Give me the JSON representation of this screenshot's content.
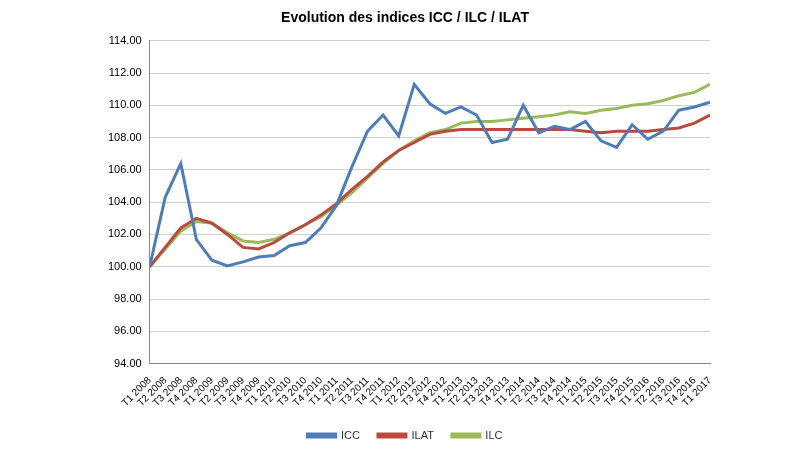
{
  "chart_data": {
    "type": "line",
    "title": "Evolution des indices ICC / ILC / ILAT",
    "categories": [
      "T1 2008",
      "T2 2008",
      "T3 2008",
      "T4 2008",
      "T1 2009",
      "T2 2009",
      "T3 2009",
      "T4 2009",
      "T1 2010",
      "T2 2010",
      "T3 2010",
      "T4 2010",
      "T1 2011",
      "T2 2011",
      "T3 2011",
      "T4 2011",
      "T1 2012",
      "T2 2012",
      "T3 2012",
      "T4 2012",
      "T1 2013",
      "T2 2013",
      "T3 2013",
      "T4 2013",
      "T1 2014",
      "T2 2014",
      "T3 2014",
      "T4 2014",
      "T1 2015",
      "T2 2015",
      "T3 2015",
      "T4 2015",
      "T1 2016",
      "T2 2016",
      "T3 2016",
      "T4 2016",
      "T1 2017"
    ],
    "series": [
      {
        "name": "ICC",
        "color": "#4f7db8",
        "values": [
          100.0,
          104.3,
          106.4,
          101.7,
          100.4,
          100.05,
          100.3,
          100.6,
          100.7,
          101.3,
          101.5,
          102.4,
          103.8,
          106.2,
          108.4,
          109.4,
          108.1,
          111.3,
          110.1,
          109.5,
          109.9,
          109.4,
          107.7,
          107.9,
          110.0,
          108.3,
          108.7,
          108.5,
          109.0,
          107.8,
          107.4,
          108.8,
          107.9,
          108.4,
          109.7,
          109.9,
          110.2
        ]
      },
      {
        "name": "ILAT",
        "color": "#b84a3e",
        "values": [
          100.0,
          101.2,
          102.4,
          103.0,
          102.7,
          102.0,
          101.2,
          101.1,
          101.5,
          102.1,
          102.6,
          103.2,
          103.9,
          104.8,
          105.6,
          106.5,
          107.2,
          107.7,
          108.2,
          108.4,
          108.5,
          108.5,
          108.5,
          108.5,
          108.5,
          108.5,
          108.5,
          108.5,
          108.4,
          108.3,
          108.4,
          108.4,
          108.4,
          108.5,
          108.6,
          108.9,
          109.4
        ]
      },
      {
        "name": "ILC",
        "color": "#9bbb59",
        "values": [
          100.0,
          101.1,
          102.2,
          102.8,
          102.7,
          102.1,
          101.6,
          101.5,
          101.7,
          102.1,
          102.6,
          103.1,
          103.8,
          104.6,
          105.5,
          106.4,
          107.2,
          107.8,
          108.3,
          108.5,
          108.9,
          109.0,
          109.0,
          109.1,
          109.2,
          109.3,
          109.4,
          109.6,
          109.5,
          109.7,
          109.8,
          110.0,
          110.1,
          110.3,
          110.6,
          110.8,
          111.3
        ]
      }
    ],
    "ylim": [
      94,
      114
    ],
    "yticks": [
      {
        "value": 94,
        "label": "94.00"
      },
      {
        "value": 96,
        "label": "96.00"
      },
      {
        "value": 98,
        "label": "98.00"
      },
      {
        "value": 100,
        "label": "100.00"
      },
      {
        "value": 102,
        "label": "102.00"
      },
      {
        "value": 104,
        "label": "104.00"
      },
      {
        "value": 106,
        "label": "106.00"
      },
      {
        "value": 108,
        "label": "108.00"
      },
      {
        "value": 110,
        "label": "110.00"
      },
      {
        "value": 112,
        "label": "112.00"
      },
      {
        "value": 114,
        "label": "114.00"
      }
    ],
    "grid": true,
    "legend": "bottom"
  }
}
